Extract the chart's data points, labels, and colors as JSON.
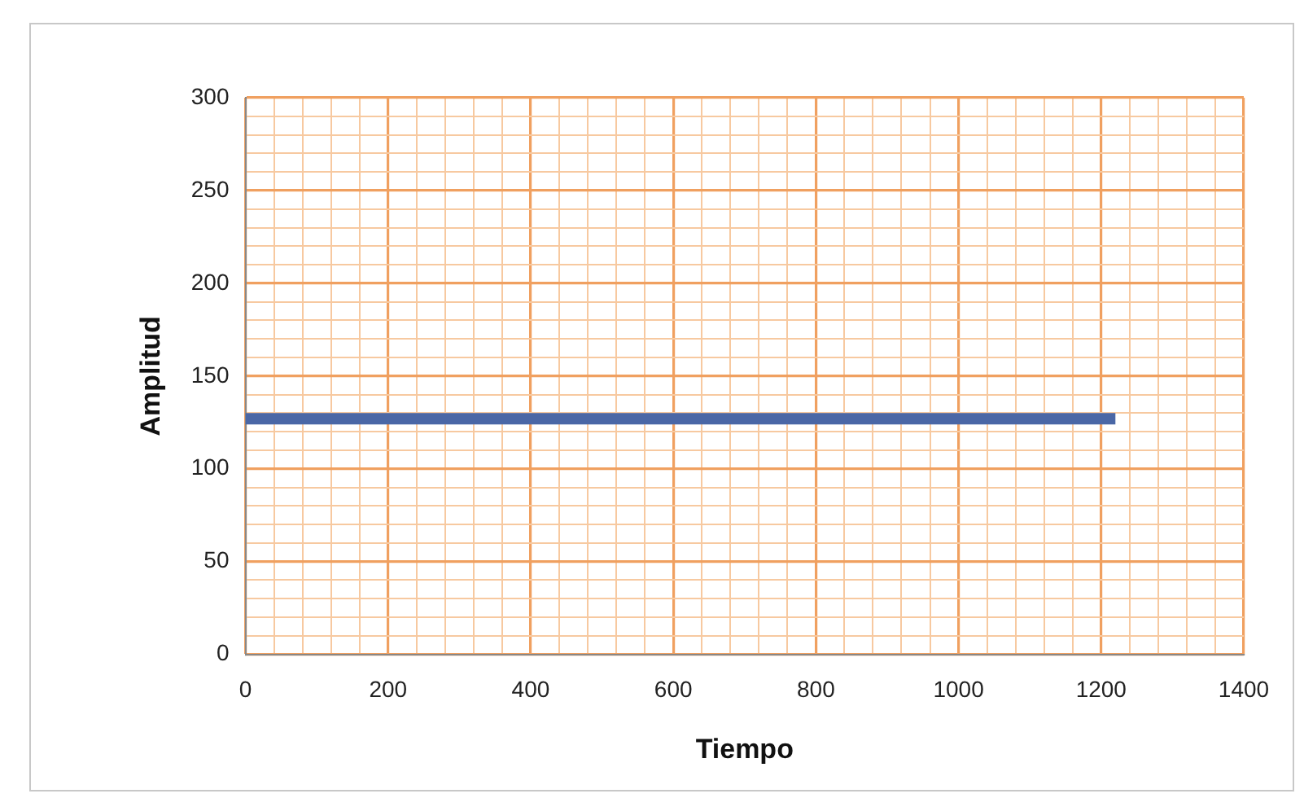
{
  "chart_data": {
    "type": "line",
    "xlabel": "Tiempo",
    "ylabel": "Amplitud",
    "x": [
      0,
      1220
    ],
    "series": [
      {
        "color": "#4a67a6",
        "values": [
          127,
          127
        ]
      }
    ],
    "xlim": [
      0,
      1400
    ],
    "xticks": [
      0,
      {
        "value": 40,
        "label": null
      },
      {
        "value": 80,
        "label": null
      },
      {
        "value": 120,
        "label": null
      },
      {
        "value": 160,
        "label": null
      },
      200,
      {
        "value": 240,
        "label": null
      },
      {
        "value": 280,
        "label": null
      },
      {
        "value": 320,
        "label": null
      },
      {
        "value": 360,
        "label": null
      },
      400,
      {
        "value": 440,
        "label": null
      },
      {
        "value": 480,
        "label": null
      },
      {
        "value": 520,
        "label": null
      },
      {
        "value": 560,
        "label": null
      },
      600,
      {
        "value": 640,
        "label": null
      },
      {
        "value": 680,
        "label": null
      },
      {
        "value": 720,
        "label": null
      },
      {
        "value": 760,
        "label": null
      },
      800,
      {
        "value": 840,
        "label": null
      },
      {
        "value": 880,
        "label": null
      },
      {
        "value": 920,
        "label": null
      },
      {
        "value": 960,
        "label": null
      },
      1000,
      {
        "value": 1040,
        "label": null
      },
      {
        "value": 1080,
        "label": null
      },
      {
        "value": 1120,
        "label": null
      },
      {
        "value": 1160,
        "label": null
      },
      1200,
      {
        "value": 1240,
        "label": null
      },
      {
        "value": 1280,
        "label": null
      },
      {
        "value": 1320,
        "label": null
      },
      {
        "value": 1360,
        "label": null
      },
      1400
    ],
    "ylim": [
      0,
      300
    ],
    "yticks": [
      0,
      {
        "value": 10,
        "label": null
      },
      {
        "value": 20,
        "label": null
      },
      {
        "value": 30,
        "label": null
      },
      {
        "value": 40,
        "label": null
      },
      50,
      {
        "value": 60,
        "label": null
      },
      {
        "value": 70,
        "label": null
      },
      {
        "value": 80,
        "label": null
      },
      {
        "value": 90,
        "label": null
      },
      100,
      {
        "value": 110,
        "label": null
      },
      {
        "value": 120,
        "label": null
      },
      {
        "value": 130,
        "label": null
      },
      {
        "value": 140,
        "label": null
      },
      150,
      {
        "value": 160,
        "label": null
      },
      {
        "value": 170,
        "label": null
      },
      {
        "value": 180,
        "label": null
      },
      {
        "value": 190,
        "label": null
      },
      200,
      {
        "value": 210,
        "label": null
      },
      {
        "value": 220,
        "label": null
      },
      {
        "value": 230,
        "label": null
      },
      {
        "value": 240,
        "label": null
      },
      250,
      {
        "value": 260,
        "label": null
      },
      {
        "value": 270,
        "label": null
      },
      {
        "value": 280,
        "label": null
      },
      {
        "value": 290,
        "label": null
      },
      300
    ],
    "grid": true,
    "marker": "none",
    "line_style": "solid",
    "legend": false
  }
}
